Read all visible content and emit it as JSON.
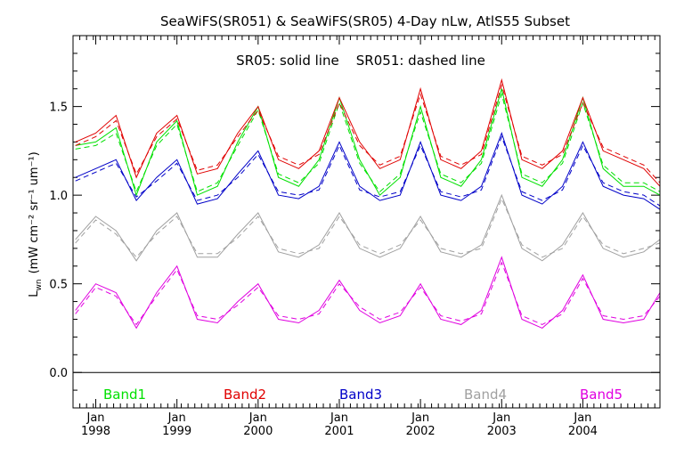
{
  "chart_data": {
    "type": "line",
    "title": "SeaWiFS(SR051) & SeaWiFS(SR05) 4-Day nLw, AtlS55 Subset",
    "annotation": "SR05: solid line    SR051: dashed line",
    "ylabel": {
      "base": "L",
      "sub": "wn",
      "units": "(mW cm⁻² sr⁻¹ um⁻¹)"
    },
    "xlim": [
      1997.72,
      2004.95
    ],
    "ylim": [
      -0.2,
      1.9
    ],
    "y_ticks": [
      {
        "value": 0.0,
        "label": "0.0"
      },
      {
        "value": 0.5,
        "label": "0.5"
      },
      {
        "value": 1.0,
        "label": "1.0"
      },
      {
        "value": 1.5,
        "label": "1.5"
      }
    ],
    "x_ticks": [
      {
        "value": 1998.0,
        "month": "Jan",
        "year": "1998"
      },
      {
        "value": 1999.0,
        "month": "Jan",
        "year": "1999"
      },
      {
        "value": 2000.0,
        "month": "Jan",
        "year": "2000"
      },
      {
        "value": 2001.0,
        "month": "Jan",
        "year": "2001"
      },
      {
        "value": 2002.0,
        "month": "Jan",
        "year": "2002"
      },
      {
        "value": 2003.0,
        "month": "Jan",
        "year": "2003"
      },
      {
        "value": 2004.0,
        "month": "Jan",
        "year": "2004"
      }
    ],
    "zero_line": 0.0,
    "x": [
      1997.75,
      1998.0,
      1998.25,
      1998.5,
      1998.75,
      1999.0,
      1999.25,
      1999.5,
      1999.75,
      2000.0,
      2000.25,
      2000.5,
      2000.75,
      2001.0,
      2001.25,
      2001.5,
      2001.75,
      2002.0,
      2002.25,
      2002.5,
      2002.75,
      2003.0,
      2003.25,
      2003.5,
      2003.75,
      2004.0,
      2004.25,
      2004.5,
      2004.75,
      2004.95
    ],
    "series": [
      {
        "name": "Band1",
        "color": "#00e000",
        "values": [
          1.28,
          1.3,
          1.38,
          1.0,
          1.3,
          1.42,
          1.0,
          1.05,
          1.3,
          1.5,
          1.1,
          1.05,
          1.2,
          1.55,
          1.2,
          1.0,
          1.1,
          1.5,
          1.1,
          1.05,
          1.2,
          1.6,
          1.1,
          1.05,
          1.2,
          1.55,
          1.15,
          1.05,
          1.05,
          1.0
        ],
        "dashed": [
          1.26,
          1.28,
          1.35,
          1.02,
          1.28,
          1.4,
          1.02,
          1.07,
          1.28,
          1.48,
          1.12,
          1.07,
          1.18,
          1.52,
          1.18,
          1.02,
          1.12,
          1.47,
          1.12,
          1.07,
          1.18,
          1.57,
          1.12,
          1.07,
          1.18,
          1.52,
          1.17,
          1.07,
          1.07,
          1.02
        ]
      },
      {
        "name": "Band2",
        "color": "#e00000",
        "values": [
          1.3,
          1.35,
          1.45,
          1.1,
          1.35,
          1.45,
          1.12,
          1.15,
          1.35,
          1.5,
          1.2,
          1.15,
          1.25,
          1.55,
          1.3,
          1.15,
          1.2,
          1.6,
          1.2,
          1.15,
          1.25,
          1.65,
          1.2,
          1.15,
          1.25,
          1.55,
          1.25,
          1.2,
          1.15,
          1.05
        ],
        "dashed": [
          1.28,
          1.33,
          1.42,
          1.12,
          1.33,
          1.43,
          1.14,
          1.17,
          1.33,
          1.48,
          1.22,
          1.17,
          1.23,
          1.52,
          1.28,
          1.17,
          1.22,
          1.57,
          1.22,
          1.17,
          1.23,
          1.62,
          1.22,
          1.17,
          1.23,
          1.52,
          1.27,
          1.22,
          1.17,
          1.07
        ]
      },
      {
        "name": "Band3",
        "color": "#0000c8",
        "values": [
          1.1,
          1.15,
          1.2,
          0.97,
          1.1,
          1.2,
          0.95,
          0.98,
          1.12,
          1.25,
          1.0,
          0.98,
          1.05,
          1.3,
          1.05,
          0.97,
          1.0,
          1.3,
          1.0,
          0.97,
          1.05,
          1.35,
          1.0,
          0.95,
          1.05,
          1.3,
          1.05,
          1.0,
          0.98,
          0.92
        ],
        "dashed": [
          1.08,
          1.13,
          1.18,
          0.99,
          1.08,
          1.18,
          0.97,
          1.0,
          1.1,
          1.23,
          1.02,
          1.0,
          1.03,
          1.28,
          1.03,
          0.99,
          1.02,
          1.28,
          1.02,
          0.99,
          1.03,
          1.33,
          1.02,
          0.97,
          1.03,
          1.28,
          1.07,
          1.02,
          1.0,
          0.94
        ]
      },
      {
        "name": "Band4",
        "color": "#a0a0a0",
        "values": [
          0.75,
          0.88,
          0.8,
          0.63,
          0.8,
          0.9,
          0.65,
          0.65,
          0.78,
          0.9,
          0.68,
          0.65,
          0.72,
          0.9,
          0.7,
          0.65,
          0.7,
          0.88,
          0.68,
          0.65,
          0.72,
          1.0,
          0.7,
          0.63,
          0.72,
          0.9,
          0.7,
          0.65,
          0.68,
          0.75
        ],
        "dashed": [
          0.73,
          0.86,
          0.78,
          0.65,
          0.78,
          0.88,
          0.67,
          0.67,
          0.76,
          0.88,
          0.7,
          0.67,
          0.7,
          0.88,
          0.72,
          0.67,
          0.72,
          0.86,
          0.7,
          0.67,
          0.7,
          0.98,
          0.72,
          0.65,
          0.7,
          0.88,
          0.72,
          0.67,
          0.7,
          0.73
        ]
      },
      {
        "name": "Band5",
        "color": "#e000e0",
        "values": [
          0.35,
          0.5,
          0.45,
          0.25,
          0.45,
          0.6,
          0.3,
          0.28,
          0.4,
          0.5,
          0.3,
          0.28,
          0.35,
          0.52,
          0.35,
          0.28,
          0.32,
          0.5,
          0.3,
          0.27,
          0.35,
          0.65,
          0.3,
          0.25,
          0.35,
          0.55,
          0.3,
          0.28,
          0.3,
          0.45
        ],
        "dashed": [
          0.33,
          0.48,
          0.43,
          0.27,
          0.43,
          0.58,
          0.32,
          0.3,
          0.38,
          0.48,
          0.32,
          0.3,
          0.33,
          0.5,
          0.37,
          0.3,
          0.34,
          0.48,
          0.32,
          0.29,
          0.33,
          0.62,
          0.32,
          0.27,
          0.33,
          0.53,
          0.32,
          0.3,
          0.32,
          0.43
        ]
      }
    ]
  }
}
